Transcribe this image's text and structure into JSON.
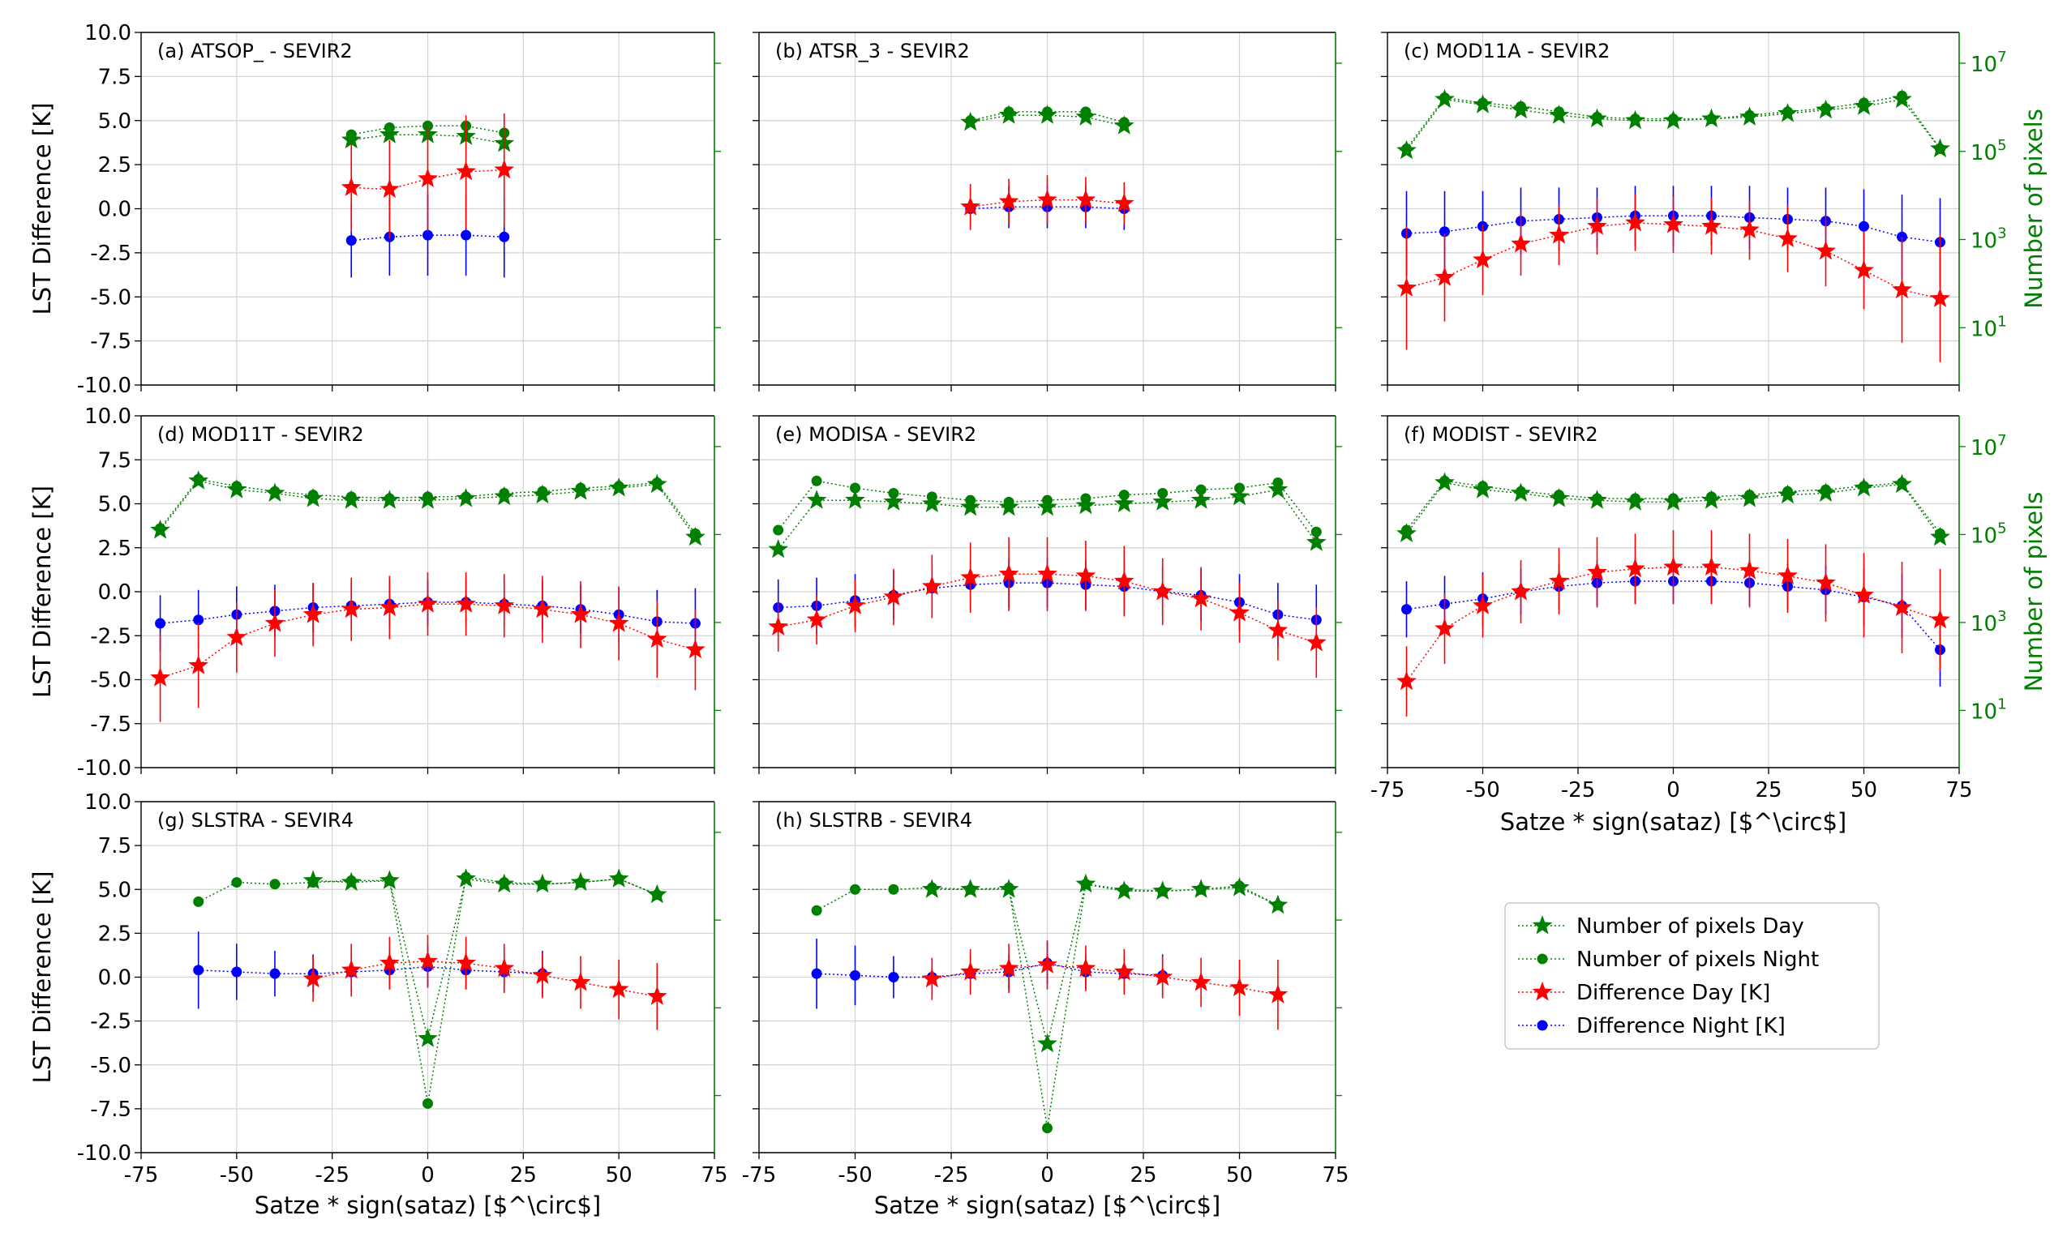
{
  "figure": {
    "ylabel": "LST Difference [K]",
    "y2label": "Number of pixels",
    "xlabel": "Satze * sign(sataz) [$^\\circ$]"
  },
  "colors": {
    "day_diff": "#ff0000",
    "night_diff": "#0000ff",
    "pixels": "#008000"
  },
  "legend": {
    "placement": "lower-right empty panel",
    "entries": [
      {
        "label": "Number of pixels Day",
        "marker": "star",
        "color": "#008000"
      },
      {
        "label": "Number of pixels Night",
        "marker": "circle",
        "color": "#008000"
      },
      {
        "label": "Difference Day [K]",
        "marker": "star",
        "color": "#ff0000"
      },
      {
        "label": "Difference Night [K]",
        "marker": "circle",
        "color": "#0000ff"
      }
    ]
  },
  "chart_data": [
    {
      "type": "scatter",
      "title": "(a) ATSOP_ - SEVIR2",
      "xlim": [
        -75,
        75
      ],
      "ylim": [
        -10,
        10
      ],
      "y2lim": [
        0.5,
        50000000
      ],
      "y2scale": "log",
      "grid": true,
      "x": [
        -20,
        -10,
        0,
        10,
        20
      ],
      "series": [
        {
          "name": "Number of pixels Day",
          "values": [
            3.9,
            4.2,
            4.2,
            4.1,
            3.7
          ]
        },
        {
          "name": "Number of pixels Night",
          "values": [
            4.2,
            4.6,
            4.7,
            4.7,
            4.3
          ]
        },
        {
          "name": "Difference Day [K]",
          "values": [
            1.2,
            1.1,
            1.7,
            2.1,
            2.2
          ],
          "err": [
            2.5,
            2.8,
            3.0,
            3.2,
            3.2
          ]
        },
        {
          "name": "Difference Night [K]",
          "values": [
            -1.8,
            -1.6,
            -1.5,
            -1.5,
            -1.6
          ],
          "err": [
            2.1,
            2.2,
            2.3,
            2.3,
            2.3
          ]
        }
      ]
    },
    {
      "type": "scatter",
      "title": "(b) ATSR_3 - SEVIR2",
      "xlim": [
        -75,
        75
      ],
      "ylim": [
        -10,
        10
      ],
      "y2lim": [
        0.5,
        50000000
      ],
      "y2scale": "log",
      "grid": true,
      "x": [
        -20,
        -10,
        0,
        10,
        20
      ],
      "series": [
        {
          "name": "Number of pixels Day",
          "values": [
            4.9,
            5.3,
            5.3,
            5.2,
            4.7
          ]
        },
        {
          "name": "Number of pixels Night",
          "values": [
            5.0,
            5.5,
            5.5,
            5.5,
            4.9
          ]
        },
        {
          "name": "Difference Day [K]",
          "values": [
            0.1,
            0.4,
            0.5,
            0.5,
            0.3
          ],
          "err": [
            1.3,
            1.3,
            1.4,
            1.3,
            1.2
          ]
        },
        {
          "name": "Difference Night [K]",
          "values": [
            0.0,
            0.1,
            0.1,
            0.1,
            0.0
          ],
          "err": [
            1.2,
            1.2,
            1.2,
            1.2,
            1.2
          ]
        }
      ]
    },
    {
      "type": "scatter",
      "title": "(c) MOD11A - SEVIR2",
      "xlim": [
        -75,
        75
      ],
      "ylim": [
        -10,
        10
      ],
      "y2lim": [
        0.5,
        50000000
      ],
      "y2scale": "log",
      "grid": true,
      "x": [
        -70,
        -60,
        -50,
        -40,
        -30,
        -20,
        -10,
        0,
        10,
        20,
        30,
        40,
        50,
        60,
        70
      ],
      "series": [
        {
          "name": "Number of pixels Day",
          "values": [
            3.3,
            6.2,
            5.9,
            5.6,
            5.3,
            5.1,
            5.0,
            5.0,
            5.1,
            5.2,
            5.4,
            5.6,
            5.8,
            6.2,
            3.4
          ]
        },
        {
          "name": "Number of pixels Night",
          "values": [
            3.4,
            6.3,
            6.0,
            5.8,
            5.5,
            5.2,
            5.1,
            5.1,
            5.1,
            5.3,
            5.5,
            5.7,
            6.0,
            6.4,
            3.4
          ]
        },
        {
          "name": "Difference Day [K]",
          "values": [
            -4.5,
            -3.9,
            -2.9,
            -2.0,
            -1.5,
            -1.0,
            -0.8,
            -0.9,
            -1.0,
            -1.2,
            -1.7,
            -2.4,
            -3.5,
            -4.6,
            -5.1
          ],
          "err": [
            3.5,
            2.5,
            2.0,
            1.8,
            1.7,
            1.6,
            1.6,
            1.6,
            1.6,
            1.7,
            1.9,
            2.0,
            2.2,
            3.0,
            3.6
          ]
        },
        {
          "name": "Difference Night [K]",
          "values": [
            -1.4,
            -1.3,
            -1.0,
            -0.7,
            -0.6,
            -0.5,
            -0.4,
            -0.4,
            -0.4,
            -0.5,
            -0.6,
            -0.7,
            -1.0,
            -1.6,
            -1.9
          ],
          "err": [
            2.4,
            2.3,
            2.0,
            1.9,
            1.8,
            1.7,
            1.7,
            1.7,
            1.7,
            1.8,
            1.8,
            1.9,
            2.1,
            2.4,
            2.5
          ]
        }
      ]
    },
    {
      "type": "scatter",
      "title": "(d) MOD11T - SEVIR2",
      "xlim": [
        -75,
        75
      ],
      "ylim": [
        -10,
        10
      ],
      "y2lim": [
        0.5,
        50000000
      ],
      "y2scale": "log",
      "grid": true,
      "x": [
        -70,
        -60,
        -50,
        -40,
        -30,
        -20,
        -10,
        0,
        10,
        20,
        30,
        40,
        50,
        60,
        70
      ],
      "series": [
        {
          "name": "Number of pixels Day",
          "values": [
            3.5,
            6.3,
            5.8,
            5.6,
            5.3,
            5.2,
            5.2,
            5.2,
            5.3,
            5.4,
            5.5,
            5.7,
            5.9,
            6.1,
            3.1
          ]
        },
        {
          "name": "Number of pixels Night",
          "values": [
            3.6,
            6.4,
            6.0,
            5.7,
            5.5,
            5.4,
            5.3,
            5.4,
            5.4,
            5.6,
            5.7,
            5.9,
            6.0,
            6.2,
            3.3
          ]
        },
        {
          "name": "Difference Day [K]",
          "values": [
            -4.9,
            -4.2,
            -2.6,
            -1.8,
            -1.3,
            -1.0,
            -0.9,
            -0.7,
            -0.7,
            -0.8,
            -1.0,
            -1.3,
            -1.8,
            -2.7,
            -3.3
          ],
          "err": [
            2.5,
            2.4,
            2.0,
            1.9,
            1.8,
            1.8,
            1.8,
            1.8,
            1.8,
            1.8,
            1.9,
            1.9,
            2.1,
            2.2,
            2.3
          ]
        },
        {
          "name": "Difference Night [K]",
          "values": [
            -1.8,
            -1.6,
            -1.3,
            -1.1,
            -0.9,
            -0.8,
            -0.7,
            -0.6,
            -0.6,
            -0.7,
            -0.8,
            -1.0,
            -1.3,
            -1.7,
            -1.8
          ],
          "err": [
            1.6,
            1.7,
            1.6,
            1.5,
            1.4,
            1.3,
            1.3,
            1.3,
            1.3,
            1.3,
            1.4,
            1.4,
            1.6,
            1.8,
            2.0
          ]
        }
      ]
    },
    {
      "type": "scatter",
      "title": "(e) MODISA - SEVIR2",
      "xlim": [
        -75,
        75
      ],
      "ylim": [
        -10,
        10
      ],
      "y2lim": [
        0.5,
        50000000
      ],
      "y2scale": "log",
      "grid": true,
      "x": [
        -70,
        -60,
        -50,
        -40,
        -30,
        -20,
        -10,
        0,
        10,
        20,
        30,
        40,
        50,
        60,
        70
      ],
      "series": [
        {
          "name": "Number of pixels Day",
          "values": [
            2.4,
            5.2,
            5.2,
            5.1,
            5.0,
            4.8,
            4.8,
            4.8,
            4.9,
            5.0,
            5.1,
            5.2,
            5.4,
            5.8,
            2.8
          ]
        },
        {
          "name": "Number of pixels Night",
          "values": [
            3.5,
            6.3,
            5.9,
            5.6,
            5.4,
            5.2,
            5.1,
            5.2,
            5.3,
            5.5,
            5.6,
            5.8,
            5.9,
            6.2,
            3.4
          ]
        },
        {
          "name": "Difference Day [K]",
          "values": [
            -2.0,
            -1.6,
            -0.8,
            -0.3,
            0.3,
            0.8,
            1.0,
            1.0,
            0.9,
            0.6,
            0.0,
            -0.4,
            -1.2,
            -2.2,
            -2.9
          ],
          "err": [
            1.4,
            1.4,
            1.5,
            1.6,
            1.8,
            2.0,
            2.1,
            2.1,
            2.0,
            2.0,
            1.9,
            1.8,
            1.7,
            1.7,
            2.0
          ]
        },
        {
          "name": "Difference Night [K]",
          "values": [
            -0.9,
            -0.8,
            -0.5,
            -0.2,
            0.2,
            0.4,
            0.5,
            0.5,
            0.4,
            0.3,
            0.0,
            -0.2,
            -0.6,
            -1.3,
            -1.6
          ],
          "err": [
            1.6,
            1.6,
            1.5,
            1.4,
            1.4,
            1.4,
            1.4,
            1.4,
            1.4,
            1.4,
            1.4,
            1.5,
            1.6,
            1.8,
            2.0
          ]
        }
      ]
    },
    {
      "type": "scatter",
      "title": "(f) MODIST - SEVIR2",
      "xlim": [
        -75,
        75
      ],
      "ylim": [
        -10,
        10
      ],
      "y2lim": [
        0.5,
        50000000
      ],
      "y2scale": "log",
      "grid": true,
      "x": [
        -70,
        -60,
        -50,
        -40,
        -30,
        -20,
        -10,
        0,
        10,
        20,
        30,
        40,
        50,
        60,
        70
      ],
      "series": [
        {
          "name": "Number of pixels Day",
          "values": [
            3.3,
            6.2,
            5.8,
            5.6,
            5.3,
            5.2,
            5.1,
            5.1,
            5.2,
            5.3,
            5.5,
            5.6,
            5.9,
            6.1,
            3.1
          ]
        },
        {
          "name": "Number of pixels Night",
          "values": [
            3.5,
            6.3,
            6.0,
            5.7,
            5.5,
            5.3,
            5.3,
            5.3,
            5.4,
            5.5,
            5.7,
            5.8,
            6.0,
            6.2,
            3.3
          ]
        },
        {
          "name": "Difference Day [K]",
          "values": [
            -5.1,
            -2.1,
            -0.8,
            0.0,
            0.6,
            1.1,
            1.3,
            1.4,
            1.4,
            1.2,
            0.9,
            0.5,
            -0.2,
            -0.9,
            -1.6
          ],
          "err": [
            2.0,
            2.0,
            1.8,
            1.8,
            1.9,
            2.0,
            2.0,
            2.1,
            2.1,
            2.1,
            2.1,
            2.2,
            2.4,
            2.6,
            2.9
          ]
        },
        {
          "name": "Difference Night [K]",
          "values": [
            -1.0,
            -0.7,
            -0.4,
            0.0,
            0.3,
            0.5,
            0.6,
            0.6,
            0.6,
            0.5,
            0.3,
            0.1,
            -0.3,
            -0.8,
            -3.3
          ],
          "err": [
            1.6,
            1.6,
            1.5,
            1.3,
            1.3,
            1.3,
            1.3,
            1.3,
            1.3,
            1.3,
            1.3,
            1.4,
            1.6,
            1.8,
            2.1
          ]
        }
      ]
    },
    {
      "type": "scatter",
      "title": "(g) SLSTRA - SEVIR4",
      "xlim": [
        -75,
        75
      ],
      "ylim": [
        -10,
        10
      ],
      "y2lim": [
        0.5,
        50000000
      ],
      "y2scale": "log",
      "grid": true,
      "x": [
        -60,
        -50,
        -40,
        -30,
        -20,
        -10,
        0,
        10,
        20,
        30,
        40,
        50,
        60
      ],
      "series": [
        {
          "name": "Number of pixels Day",
          "values": [
            null,
            null,
            null,
            5.5,
            5.4,
            5.5,
            -3.5,
            5.6,
            5.3,
            5.3,
            5.4,
            5.6,
            4.7
          ]
        },
        {
          "name": "Number of pixels Night",
          "values": [
            4.3,
            5.4,
            5.3,
            5.4,
            5.5,
            5.5,
            -7.2,
            5.7,
            5.4,
            5.3,
            5.4,
            5.6,
            4.7
          ]
        },
        {
          "name": "Difference Day [K]",
          "values": [
            null,
            null,
            null,
            -0.1,
            0.4,
            0.8,
            0.9,
            0.8,
            0.5,
            0.1,
            -0.3,
            -0.7,
            -1.1
          ],
          "err": [
            null,
            null,
            null,
            1.3,
            1.5,
            1.5,
            1.5,
            1.5,
            1.4,
            1.3,
            1.5,
            1.7,
            1.9
          ]
        },
        {
          "name": "Difference Night [K]",
          "values": [
            0.4,
            0.3,
            0.2,
            0.2,
            0.3,
            0.4,
            0.6,
            0.4,
            0.3,
            0.2,
            null,
            null,
            null
          ],
          "err": [
            2.2,
            1.6,
            1.3,
            1.1,
            1.1,
            1.1,
            1.2,
            1.1,
            1.1,
            1.3,
            null,
            null,
            null
          ]
        }
      ]
    },
    {
      "type": "scatter",
      "title": "(h) SLSTRB - SEVIR4",
      "xlim": [
        -75,
        75
      ],
      "ylim": [
        -10,
        10
      ],
      "y2lim": [
        0.5,
        50000000
      ],
      "y2scale": "log",
      "grid": true,
      "x": [
        -60,
        -50,
        -40,
        -30,
        -20,
        -10,
        0,
        10,
        20,
        30,
        40,
        50,
        60
      ],
      "series": [
        {
          "name": "Number of pixels Day",
          "values": [
            null,
            null,
            null,
            5.0,
            5.0,
            5.0,
            -3.8,
            5.3,
            4.9,
            4.9,
            5.0,
            5.1,
            4.1
          ]
        },
        {
          "name": "Number of pixels Night",
          "values": [
            3.8,
            5.0,
            5.0,
            5.1,
            5.0,
            5.1,
            -8.6,
            5.3,
            5.0,
            4.9,
            5.0,
            5.2,
            4.1
          ]
        },
        {
          "name": "Difference Day [K]",
          "values": [
            null,
            null,
            null,
            -0.1,
            0.3,
            0.5,
            0.7,
            0.5,
            0.3,
            0.0,
            -0.3,
            -0.6,
            -1.0
          ],
          "err": [
            null,
            null,
            null,
            1.2,
            1.3,
            1.4,
            1.4,
            1.3,
            1.3,
            1.2,
            1.4,
            1.6,
            2.0
          ]
        },
        {
          "name": "Difference Night [K]",
          "values": [
            0.2,
            0.1,
            0.0,
            0.0,
            0.2,
            0.3,
            0.8,
            0.3,
            0.2,
            0.1,
            null,
            null,
            null
          ],
          "err": [
            2.0,
            1.7,
            1.2,
            1.0,
            1.0,
            1.0,
            1.2,
            1.0,
            1.0,
            1.2,
            null,
            null,
            null
          ]
        }
      ]
    }
  ]
}
